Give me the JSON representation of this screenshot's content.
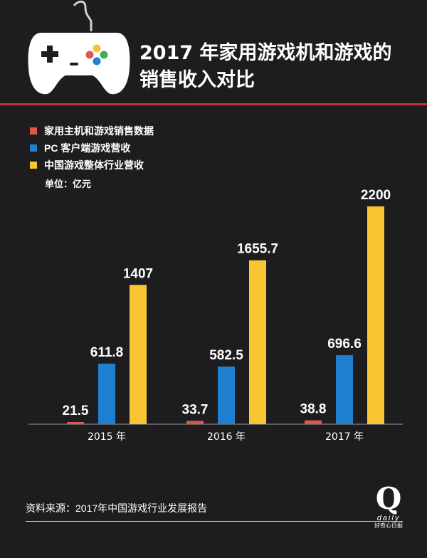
{
  "header": {
    "title": "2017 年家用游戏机和游戏的销售收入对比",
    "icon": "game-controller-icon"
  },
  "colors": {
    "background": "#1d1d1f",
    "accent_rule": "#c1323a",
    "series_console": "#e0584c",
    "series_pc": "#1f7fd0",
    "series_total": "#f9c533"
  },
  "legend": [
    {
      "label": "家用主机和游戏销售数据"
    },
    {
      "label": "PC 客户端游戏营收"
    },
    {
      "label": "中国游戏整体行业营收"
    }
  ],
  "unit": "单位：亿元",
  "chart_data": {
    "type": "bar",
    "categories": [
      "2015 年",
      "2016 年",
      "2017 年"
    ],
    "series": [
      {
        "name": "家用主机和游戏销售数据",
        "values": [
          21.5,
          33.7,
          38.8
        ],
        "labels": [
          "21.5",
          "33.7",
          "38.8"
        ]
      },
      {
        "name": "PC 客户端游戏营收",
        "values": [
          611.8,
          582.5,
          696.6
        ],
        "labels": [
          "611.8",
          "582.5",
          "696.6"
        ]
      },
      {
        "name": "中国游戏整体行业营收",
        "values": [
          1407,
          1655.7,
          2200
        ],
        "labels": [
          "1407",
          "1655.7",
          "2200"
        ]
      }
    ],
    "ylim": [
      0,
      2200
    ],
    "grid": false,
    "legend_position": "top-left"
  },
  "footer": {
    "source": "资料来源：2017年中国游戏行业发展报告",
    "logo_letter": "Q",
    "logo_word": "daily",
    "logo_cn": "好奇心日报"
  }
}
